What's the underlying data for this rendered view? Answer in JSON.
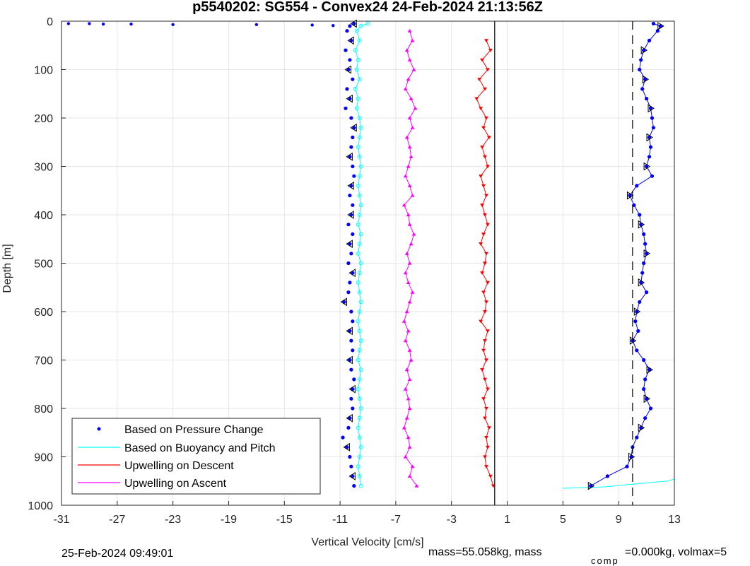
{
  "chart_data": {
    "type": "scatter",
    "title": "p5540202: SG554 - Convex24 24-Feb-2024 21:13:56Z",
    "xlabel": "Vertical Velocity [cm/s]",
    "ylabel": "Depth [m]",
    "xlim": [
      -31,
      13
    ],
    "ylim": [
      0,
      1000
    ],
    "y_reversed": true,
    "xticks": [
      -31,
      -27,
      -23,
      -19,
      -15,
      -11,
      -7,
      -3,
      1,
      5,
      9,
      13
    ],
    "yticks": [
      0,
      100,
      200,
      300,
      400,
      500,
      600,
      700,
      800,
      900,
      1000
    ],
    "grid": true,
    "legend_position": "bottom-left",
    "reference_lines": [
      {
        "x": 0.1,
        "style": "solid",
        "color": "#000000"
      },
      {
        "x": 10,
        "style": "dashed",
        "color": "#000000"
      }
    ],
    "series": [
      {
        "name": "Based on Pressure Change",
        "color": "#0000ff",
        "marker": "dot",
        "depth": [
          5,
          10,
          20,
          40,
          60,
          80,
          100,
          120,
          140,
          160,
          180,
          200,
          220,
          240,
          260,
          280,
          300,
          320,
          340,
          360,
          380,
          400,
          420,
          440,
          460,
          480,
          500,
          520,
          540,
          560,
          580,
          600,
          620,
          640,
          660,
          680,
          700,
          720,
          740,
          760,
          780,
          800,
          820,
          840,
          860,
          880,
          900,
          920,
          940,
          960
        ],
        "dive_velocity": [
          -10.0,
          -10.3,
          -10.5,
          -10.2,
          -10.6,
          -10.3,
          -10.4,
          -10.1,
          -10.5,
          -10.3,
          -10.6,
          -10.2,
          -10.0,
          -10.1,
          -10.2,
          -10.3,
          -10.1,
          -10.0,
          -10.2,
          -10.3,
          -10.1,
          -10.2,
          -10.4,
          -10.1,
          -10.3,
          -10.2,
          -10.4,
          -10.1,
          -10.3,
          -10.4,
          -10.7,
          -10.2,
          -10.1,
          -10.3,
          -10.2,
          -10.1,
          -10.3,
          -10.2,
          -10.0,
          -10.1,
          -10.2,
          -10.1,
          -10.3,
          -10.4,
          -10.8,
          -10.5,
          -10.3,
          -10.2,
          -10.1,
          -10.0
        ],
        "climb_velocity": [
          11.5,
          12.0,
          11.8,
          11.2,
          10.8,
          10.6,
          10.5,
          10.9,
          10.7,
          11.0,
          11.3,
          11.4,
          11.5,
          11.2,
          11.3,
          11.2,
          11.0,
          11.4,
          10.3,
          9.8,
          10.1,
          10.5,
          10.6,
          10.8,
          10.9,
          11.0,
          10.8,
          10.7,
          10.6,
          11.0,
          10.5,
          10.3,
          10.2,
          10.4,
          10.0,
          10.3,
          10.8,
          11.2,
          10.9,
          10.8,
          11.0,
          11.3,
          10.9,
          10.6,
          10.3,
          10.0,
          9.9,
          9.6,
          8.2,
          7.0
        ]
      },
      {
        "name": "Based on Buoyancy and Pitch",
        "color": "#00ffff",
        "marker": "circle-line",
        "depth": [
          5,
          10,
          20,
          40,
          60,
          80,
          100,
          120,
          140,
          160,
          180,
          200,
          220,
          240,
          260,
          280,
          300,
          320,
          340,
          360,
          380,
          400,
          420,
          440,
          460,
          480,
          500,
          520,
          540,
          560,
          580,
          600,
          620,
          640,
          660,
          680,
          700,
          720,
          740,
          760,
          780,
          800,
          820,
          840,
          860,
          880,
          900,
          920,
          940,
          960
        ],
        "velocity": [
          -9.0,
          -9.5,
          -9.8,
          -9.6,
          -9.9,
          -9.7,
          -9.8,
          -9.6,
          -9.9,
          -9.7,
          -9.8,
          -9.6,
          -9.5,
          -9.6,
          -9.7,
          -9.6,
          -9.5,
          -9.6,
          -9.7,
          -9.6,
          -9.5,
          -9.6,
          -9.7,
          -9.5,
          -9.6,
          -9.7,
          -9.5,
          -9.6,
          -9.7,
          -9.6,
          -9.5,
          -9.6,
          -9.7,
          -9.6,
          -9.5,
          -9.6,
          -9.7,
          -9.5,
          -9.6,
          -9.7,
          -9.6,
          -9.5,
          -9.6,
          -9.7,
          -9.6,
          -9.5,
          -9.6,
          -9.7,
          -9.6,
          -9.5
        ]
      },
      {
        "name": "Upwelling on Descent",
        "color": "#ff0000",
        "marker": "triangle-down",
        "depth": [
          40,
          60,
          80,
          100,
          120,
          140,
          160,
          180,
          200,
          220,
          240,
          260,
          280,
          300,
          320,
          340,
          360,
          380,
          400,
          420,
          440,
          460,
          480,
          500,
          520,
          540,
          560,
          580,
          600,
          620,
          640,
          660,
          680,
          700,
          720,
          740,
          760,
          780,
          800,
          820,
          840,
          860,
          880,
          900,
          920,
          940,
          960
        ],
        "velocity": [
          -0.5,
          -0.2,
          -0.8,
          -0.4,
          -1.0,
          -0.6,
          -1.2,
          -0.9,
          -0.5,
          -0.7,
          -0.3,
          -0.8,
          -0.6,
          -0.4,
          -0.9,
          -0.7,
          -0.5,
          -0.8,
          -0.6,
          -0.4,
          -0.7,
          -0.9,
          -0.5,
          -0.6,
          -0.8,
          -0.4,
          -0.7,
          -0.5,
          -0.6,
          -0.9,
          -0.4,
          -0.6,
          -0.7,
          -0.5,
          -0.8,
          -0.6,
          -0.4,
          -0.7,
          -0.5,
          -0.6,
          -0.3,
          -0.5,
          -0.4,
          -0.6,
          -0.5,
          -0.2,
          0.0
        ]
      },
      {
        "name": "Upwelling on Ascent",
        "color": "#ff00ff",
        "marker": "triangle-up",
        "depth": [
          20,
          40,
          60,
          80,
          100,
          120,
          140,
          160,
          180,
          200,
          220,
          240,
          260,
          280,
          300,
          320,
          340,
          360,
          380,
          400,
          420,
          440,
          460,
          480,
          500,
          520,
          540,
          560,
          580,
          600,
          620,
          640,
          660,
          680,
          700,
          720,
          740,
          760,
          780,
          800,
          820,
          840,
          860,
          880,
          900,
          920,
          940,
          960
        ],
        "velocity": [
          -6.0,
          -5.8,
          -6.2,
          -6.0,
          -5.7,
          -6.1,
          -6.3,
          -5.9,
          -5.6,
          -6.0,
          -5.8,
          -6.2,
          -6.0,
          -5.9,
          -6.1,
          -6.3,
          -6.0,
          -5.8,
          -6.4,
          -6.1,
          -6.0,
          -5.7,
          -5.9,
          -6.2,
          -6.0,
          -6.3,
          -6.1,
          -5.8,
          -6.0,
          -6.2,
          -6.4,
          -6.1,
          -6.3,
          -6.0,
          -5.9,
          -6.2,
          -6.0,
          -6.3,
          -6.1,
          -6.0,
          -6.2,
          -6.4,
          -6.1,
          -6.0,
          -6.3,
          -5.8,
          -6.0,
          -5.5
        ]
      }
    ],
    "surface_outliers": {
      "pressure_change": {
        "depth": [
          5,
          5,
          6,
          6,
          7,
          7,
          8,
          9
        ],
        "velocity": [
          -30.5,
          -29.0,
          -28.0,
          -26.0,
          -23.0,
          -17.0,
          -13.0,
          -11.5
        ]
      },
      "bottom_cyan": {
        "depth": [
          965,
          962,
          955,
          950,
          946
        ],
        "velocity": [
          5.0,
          8.0,
          10.5,
          12.5,
          13.0
        ]
      }
    }
  },
  "legend": [
    {
      "label": "Based on Pressure Change",
      "color": "#0000ff",
      "type": "dot"
    },
    {
      "label": "Based on Buoyancy and Pitch",
      "color": "#00ffff",
      "type": "line"
    },
    {
      "label": "Upwelling on Descent",
      "color": "#ff0000",
      "type": "line"
    },
    {
      "label": "Upwelling on Ascent",
      "color": "#ff00ff",
      "type": "line"
    }
  ],
  "footer": {
    "date": "25-Feb-2024 09:49:01",
    "mass_text_a": "mass=55.058kg, mass",
    "mass_subscript": "comp",
    "mass_text_b": "=0.000kg, volmax=5"
  }
}
